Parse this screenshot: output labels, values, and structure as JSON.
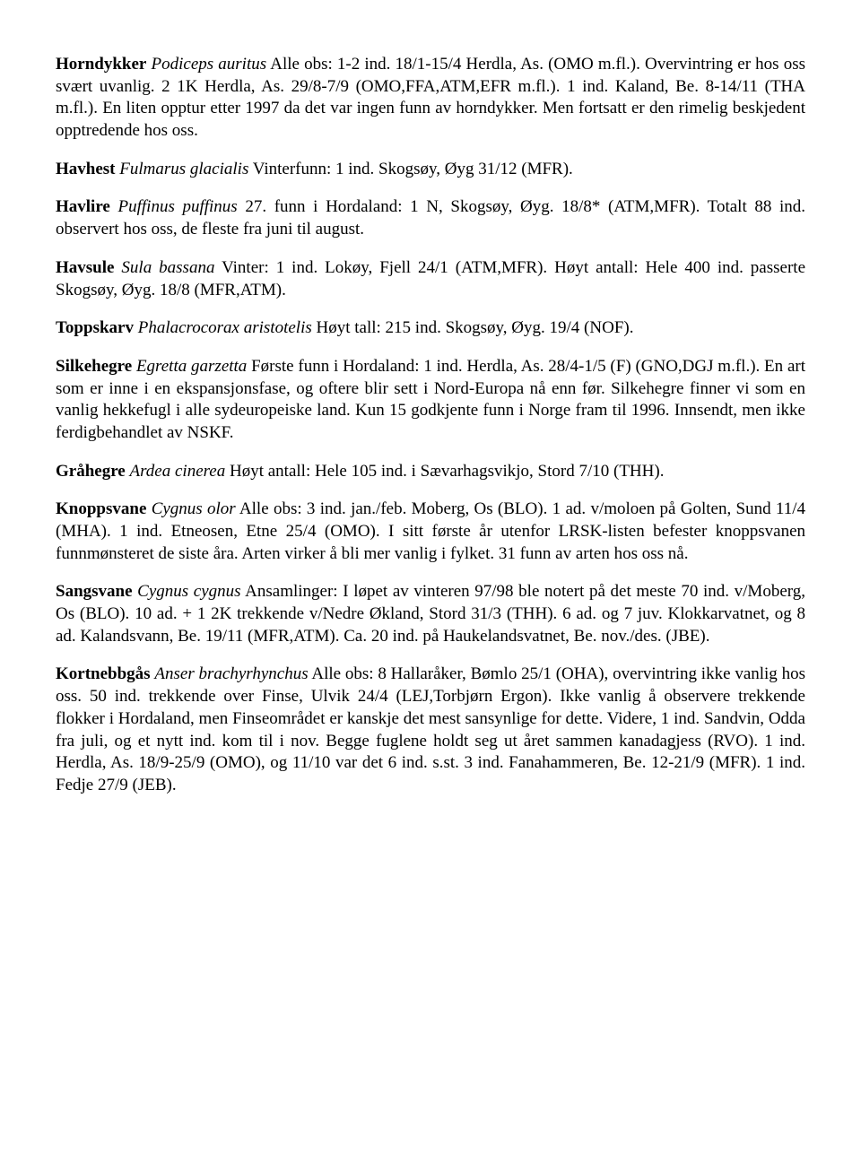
{
  "entries": [
    {
      "common": "Horndykker",
      "latin": "Podiceps auritus",
      "text_after_latin": "  Alle obs: 1-2 ind. 18/1-15/4 Herdla, As. (OMO m.fl.). Overvintring er hos oss svært uvanlig. 2 1K Herdla, As. 29/8-7/9 (OMO,FFA,ATM,EFR m.fl.). 1 ind. Kaland, Be. 8-14/11 (THA m.fl.). En liten opptur etter 1997 da det var ingen funn av horndykker. Men fortsatt er den rimelig beskjedent opptredende hos oss."
    },
    {
      "common": "Havhest",
      "latin": "Fulmarus glacialis",
      "text_after_latin": "  Vinterfunn: 1 ind. Skogsøy, Øyg 31/12 (MFR)."
    },
    {
      "common": "Havlire",
      "latin": "Puffinus puffinus",
      "text_after_latin": "  27. funn i Hordaland: 1 N, Skogsøy, Øyg. 18/8* (ATM,MFR). Totalt 88 ind. observert hos oss, de fleste fra juni til august."
    },
    {
      "common": "Havsule",
      "latin": "Sula bassana",
      "text_after_latin": "  Vinter: 1 ind. Lokøy, Fjell 24/1 (ATM,MFR). Høyt antall: Hele 400 ind. passerte Skogsøy, Øyg. 18/8 (MFR,ATM)."
    },
    {
      "common": "Toppskarv",
      "latin": "Phalacrocorax aristotelis",
      "text_after_latin": "  Høyt tall: 215 ind. Skogsøy, Øyg. 19/4 (NOF)."
    },
    {
      "common": "Silkehegre",
      "latin": "Egretta garzetta",
      "text_after_latin": "  Første funn i Hordaland: 1 ind. Herdla, As. 28/4-1/5 (F) (GNO,DGJ m.fl.). En art som er inne i en ekspansjonsfase, og oftere blir sett i Nord-Europa nå enn før. Silkehegre finner vi som en vanlig hekkefugl i alle sydeuropeiske land. Kun 15 godkjente funn i Norge fram til 1996. Innsendt, men ikke ferdigbehandlet av NSKF."
    },
    {
      "common": "Gråhegre",
      "latin": "Ardea cinerea",
      "text_after_latin": "  Høyt antall: Hele 105 ind. i Sævarhagsvikjo, Stord 7/10 (THH)."
    },
    {
      "common": "Knoppsvane",
      "latin": "Cygnus olor",
      "text_after_latin": "  Alle obs: 3 ind. jan./feb. Moberg, Os (BLO). 1 ad. v/moloen på Golten, Sund 11/4 (MHA). 1 ind. Etneosen, Etne 25/4 (OMO). I sitt første år utenfor LRSK-listen befester knoppsvanen funnmønsteret de siste åra. Arten virker å bli mer vanlig i fylket. 31 funn av arten hos oss nå."
    },
    {
      "common": "Sangsvane",
      "latin": "Cygnus cygnus",
      "text_after_latin": "  Ansamlinger: I løpet av vinteren 97/98 ble notert på det meste 70 ind. v/Moberg, Os (BLO). 10 ad. + 1 2K trekkende v/Nedre Økland, Stord 31/3 (THH). 6 ad. og 7 juv. Klokkarvatnet, og 8 ad. Kalandsvann, Be. 19/11 (MFR,ATM). Ca. 20 ind. på Haukelandsvatnet, Be. nov./des. (JBE)."
    },
    {
      "common": "Kortnebbgås",
      "latin": "Anser brachyrhynchus",
      "text_after_latin": "  Alle obs: 8 Hallaråker, Bømlo 25/1 (OHA), overvintring ikke vanlig hos oss. 50 ind. trekkende over Finse, Ulvik 24/4 (LEJ,Torbjørn Ergon). Ikke vanlig å observere trekkende flokker i Hordaland, men Finseområdet er kanskje det mest sansynlige for dette. Videre, 1 ind. Sandvin, Odda fra juli, og et nytt ind. kom til i nov. Begge fuglene holdt seg ut året sammen kanadagjess (RVO). 1 ind. Herdla, As. 18/9-25/9 (OMO), og 11/10 var det 6 ind. s.st. 3 ind. Fanahammeren, Be. 12-21/9 (MFR). 1 ind. Fedje 27/9 (JEB)."
    }
  ]
}
